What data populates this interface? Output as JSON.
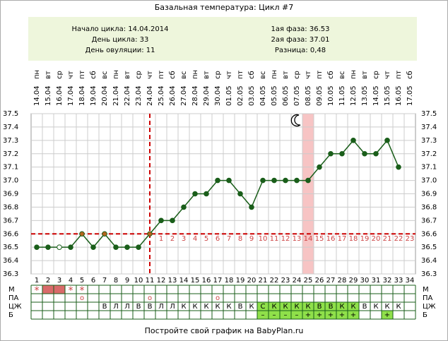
{
  "chart_data": {
    "type": "line",
    "title": "Базальная температура: Цикл #7",
    "info_left": [
      "Начало цикла: 14.04.2014",
      "День цикла: 33",
      "День овуляции: 11"
    ],
    "info_right": [
      "1ая фаза: 36.53",
      "2ая фаза: 37.01",
      "Разница: 0,48"
    ],
    "categories": [
      1,
      2,
      3,
      4,
      5,
      6,
      7,
      8,
      9,
      10,
      11,
      12,
      13,
      14,
      15,
      16,
      17,
      18,
      19,
      20,
      21,
      22,
      23,
      24,
      25,
      26,
      27,
      28,
      29,
      30,
      31,
      32,
      33,
      34
    ],
    "dates": [
      "14.04",
      "15.04",
      "16.04",
      "17.04",
      "18.04",
      "19.04",
      "20.04",
      "21.04",
      "22.04",
      "23.04",
      "24.04",
      "25.04",
      "26.04",
      "27.04",
      "28.04",
      "29.04",
      "30.04",
      "01.05",
      "02.05",
      "03.05",
      "04.05",
      "05.05",
      "06.05",
      "07.05",
      "08.05",
      "09.05",
      "10.05",
      "11.05",
      "12.05",
      "13.05",
      "14.05",
      "15.05",
      "16.05",
      "17.05"
    ],
    "weekdays": [
      "пн",
      "вт",
      "ср",
      "чт",
      "пт",
      "сб",
      "вс",
      "пн",
      "вт",
      "ср",
      "чт",
      "пт",
      "сб",
      "вс",
      "пн",
      "вт",
      "ср",
      "чт",
      "пт",
      "сб",
      "вс",
      "пн",
      "вт",
      "ср",
      "чт",
      "пт",
      "сб",
      "вс",
      "пн",
      "вт",
      "ср",
      "чт",
      "пт",
      "сб"
    ],
    "series": [
      {
        "name": "Температура",
        "color": "#1a5e1a",
        "values": [
          36.5,
          36.5,
          36.5,
          36.5,
          36.6,
          36.5,
          36.6,
          36.5,
          36.5,
          36.5,
          36.6,
          36.7,
          36.7,
          36.8,
          36.9,
          36.9,
          37.0,
          37.0,
          36.9,
          36.8,
          37.0,
          37.0,
          37.0,
          37.0,
          37.0,
          37.1,
          37.2,
          37.2,
          37.3,
          37.2,
          37.2,
          37.3,
          37.1,
          null
        ]
      }
    ],
    "hollow_days": [
      3
    ],
    "accent_days": [
      5,
      7,
      11
    ],
    "ylim": [
      36.3,
      37.5
    ],
    "yticks": [
      36.3,
      36.4,
      36.5,
      36.6,
      36.7,
      36.8,
      36.9,
      {
        "value": 37,
        "label": "37.0"
      },
      37.1,
      37.2,
      37.3,
      37.4,
      37.5
    ],
    "coverline": 36.6,
    "ovulation_day": 11,
    "marked_days": [
      25
    ],
    "moon_day": 24,
    "luteal_labels": [
      1,
      2,
      3,
      4,
      5,
      6,
      7,
      8,
      9,
      10,
      11,
      12,
      13,
      14,
      15,
      16,
      17,
      18,
      19,
      20,
      21,
      22,
      23
    ],
    "grid": true
  },
  "cycle_table": {
    "rows": [
      {
        "label": "М",
        "cells": [
          "*",
          null,
          null,
          "*",
          "*",
          null,
          null,
          null,
          null,
          null,
          null,
          null,
          null,
          null,
          null,
          null,
          null,
          null,
          null,
          null,
          null,
          null,
          null,
          null,
          null,
          null,
          null,
          null,
          null,
          null,
          null,
          null,
          null,
          null
        ],
        "filled_days": [
          2,
          3
        ]
      },
      {
        "label": "ПА",
        "cells": [
          null,
          null,
          null,
          null,
          "о",
          null,
          null,
          null,
          null,
          null,
          "о",
          null,
          null,
          null,
          null,
          null,
          "о",
          null,
          null,
          null,
          null,
          null,
          null,
          null,
          null,
          null,
          null,
          null,
          null,
          null,
          null,
          null,
          null,
          null
        ]
      },
      {
        "label": "ЦЖ",
        "cells": [
          null,
          null,
          null,
          null,
          null,
          null,
          "В",
          "Л",
          "Л",
          "В",
          "В",
          "Л",
          "Л",
          "К",
          "К",
          "К",
          "К",
          "К",
          "В",
          "К",
          "С",
          "К",
          "К",
          "К",
          "К",
          "В",
          "В",
          "К",
          "К",
          "В",
          "К",
          "К",
          "К",
          null
        ],
        "green_days": [
          21,
          22,
          23,
          24,
          25,
          26,
          27,
          28,
          29
        ]
      },
      {
        "label": "Б",
        "cells": [
          null,
          null,
          null,
          null,
          null,
          null,
          null,
          null,
          null,
          null,
          null,
          null,
          null,
          null,
          null,
          null,
          null,
          null,
          null,
          null,
          "–",
          "–",
          "–",
          "–",
          "+",
          "+",
          "+",
          "+",
          "+",
          null,
          null,
          "+",
          null,
          null
        ],
        "green_days": [
          21,
          22,
          23,
          24,
          25,
          26,
          27,
          28,
          29,
          32
        ]
      }
    ]
  },
  "footer": "Постройте свой график на BabyPlan.ru"
}
